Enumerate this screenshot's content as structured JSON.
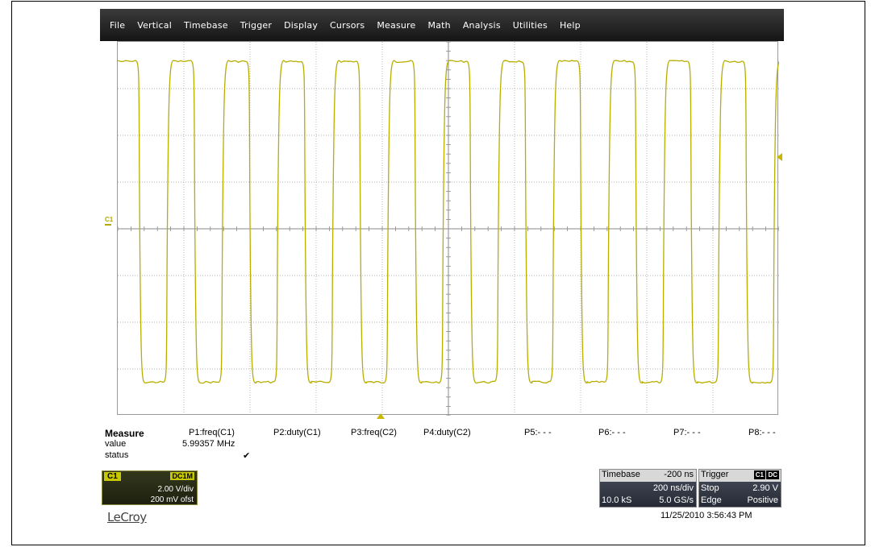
{
  "menu": [
    "File",
    "Vertical",
    "Timebase",
    "Trigger",
    "Display",
    "Cursors",
    "Measure",
    "Math",
    "Analysis",
    "Utilities",
    "Help"
  ],
  "channel_marker": "C1",
  "colors": {
    "trace": "#b8ae00",
    "grid": "#9a9a9a",
    "menubar": "#1f1f1f"
  },
  "waveform": {
    "divisions_x": 10,
    "divisions_y": 8,
    "frequency_mhz": 5.99357,
    "timebase_ns_per_div": 200,
    "duty": 0.5,
    "high_div": 3.6,
    "low_div": -3.3
  },
  "measure": {
    "title": "Measure",
    "row_value": "value",
    "row_status": "status",
    "params": [
      "P1:freq(C1)",
      "P2:duty(C1)",
      "P3:freq(C2)",
      "P4:duty(C2)",
      "P5:- - -",
      "P6:- - -",
      "P7:- - -",
      "P8:- - -"
    ],
    "p1_value": "5.99357 MHz",
    "p1_status": "✔"
  },
  "channel": {
    "label": "C1",
    "coupling": "DC1M",
    "vdiv": "2.00 V/div",
    "offset": "200 mV ofst"
  },
  "logo": "LeCroy",
  "timebase": {
    "title": "Timebase",
    "delay": "-200 ns",
    "tdiv": "200 ns/div",
    "samples": "10.0 kS",
    "rate": "5.0 GS/s"
  },
  "trigger": {
    "title": "Trigger",
    "source": "C1",
    "coupling": "DC",
    "mode": "Stop",
    "level": "2.90 V",
    "type": "Edge",
    "slope": "Positive"
  },
  "datetime": "11/25/2010 3:56:43 PM"
}
